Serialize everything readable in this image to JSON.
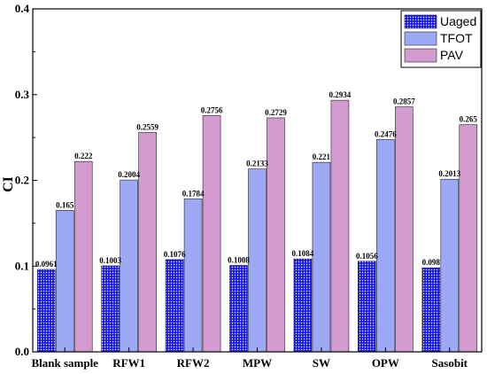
{
  "chart_data": {
    "type": "bar",
    "title": "",
    "xlabel": "",
    "ylabel": "CI",
    "ylim": [
      0,
      0.4
    ],
    "yticks": [
      "0.0",
      "0.1",
      "0.2",
      "0.3",
      "0.4"
    ],
    "ytick_values": [
      0,
      0.1,
      0.2,
      0.3,
      0.4
    ],
    "grid": false,
    "legend_position": "top-right",
    "categories": [
      "Blank sample",
      "RFW1",
      "RFW2",
      "MPW",
      "SW",
      "OPW",
      "Sasobit"
    ],
    "series": [
      {
        "name": "Uaged",
        "color": "#1a1aee",
        "pattern": "dots",
        "values": [
          0.0961,
          0.1003,
          0.1076,
          0.1008,
          0.1084,
          0.1056,
          0.098
        ],
        "labels": [
          "0.0961",
          "0.1003",
          "0.1076",
          "0.1008",
          "0.1084",
          "0.1056",
          "0.098"
        ]
      },
      {
        "name": "TFOT",
        "color": "#9da9f4",
        "pattern": "solid",
        "values": [
          0.165,
          0.2004,
          0.1784,
          0.2133,
          0.221,
          0.2476,
          0.2013
        ],
        "labels": [
          "0.165",
          "0.2004",
          "0.1784",
          "0.2133",
          "0.221",
          "0.2476",
          "0.2013"
        ]
      },
      {
        "name": "PAV",
        "color": "#d49bd0",
        "pattern": "solid",
        "values": [
          0.222,
          0.2559,
          0.2756,
          0.2729,
          0.2934,
          0.2857,
          0.265
        ],
        "labels": [
          "0.222",
          "0.2559",
          "0.2756",
          "0.2729",
          "0.2934",
          "0.2857",
          "0.265"
        ]
      }
    ]
  }
}
